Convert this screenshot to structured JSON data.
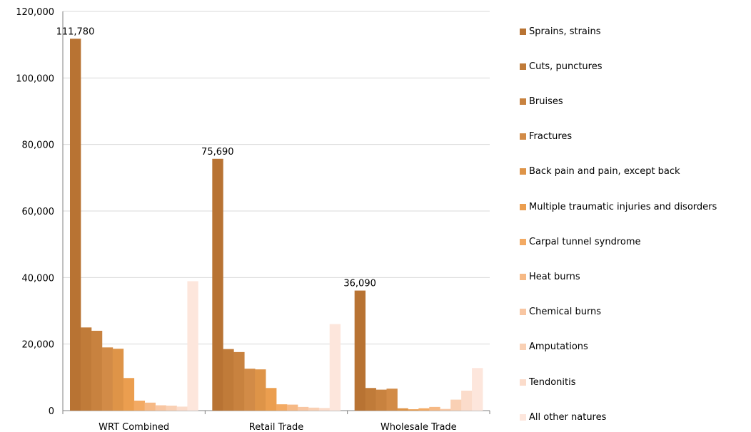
{
  "chart_data": {
    "type": "bar",
    "categories": [
      "WRT Combined",
      "Retail Trade",
      "Wholesale Trade"
    ],
    "ylim": [
      0,
      120000
    ],
    "yticks": [
      0,
      20000,
      40000,
      60000,
      80000,
      100000,
      120000
    ],
    "ytick_labels": [
      "0",
      "20,000",
      "40,000",
      "60,000",
      "80,000",
      "100,000",
      "120,000"
    ],
    "grid": true,
    "legend_position": "right",
    "series": [
      {
        "name": "Sprains, strains",
        "color": "#b87333",
        "values": [
          111780,
          75690,
          36090
        ]
      },
      {
        "name": "Cuts, punctures",
        "color": "#c07b39",
        "values": [
          25000,
          18500,
          6800
        ]
      },
      {
        "name": "Bruises",
        "color": "#c8823f",
        "values": [
          24000,
          17600,
          6300
        ]
      },
      {
        "name": "Fractures",
        "color": "#d28b47",
        "values": [
          19000,
          12600,
          6600
        ]
      },
      {
        "name": "Back pain and pain, except back",
        "color": "#de9448",
        "values": [
          18600,
          12400,
          700
        ]
      },
      {
        "name": "Multiple traumatic injuries and disorders",
        "color": "#eb9e4f",
        "values": [
          9800,
          6800,
          400
        ]
      },
      {
        "name": "Carpal tunnel syndrome",
        "color": "#f3aa63",
        "values": [
          3000,
          1900,
          700
        ]
      },
      {
        "name": "Heat burns",
        "color": "#f6b985",
        "values": [
          2400,
          1800,
          1100
        ]
      },
      {
        "name": "Chemical burns",
        "color": "#f8c6a2",
        "values": [
          1600,
          1100,
          500
        ]
      },
      {
        "name": "Amputations",
        "color": "#f9d0b4",
        "values": [
          1500,
          900,
          3300
        ]
      },
      {
        "name": "Tendonitis",
        "color": "#fbdccb",
        "values": [
          1200,
          800,
          6000
        ]
      },
      {
        "name": "All other natures",
        "color": "#fde6dc",
        "values": [
          38900,
          26000,
          12800
        ]
      }
    ],
    "data_labels": [
      {
        "category": "WRT Combined",
        "series": "Sprains, strains",
        "text": "111,780"
      },
      {
        "category": "Retail Trade",
        "series": "Sprains, strains",
        "text": "75,690"
      },
      {
        "category": "Wholesale Trade",
        "series": "Sprains, strains",
        "text": "36,090"
      }
    ]
  }
}
